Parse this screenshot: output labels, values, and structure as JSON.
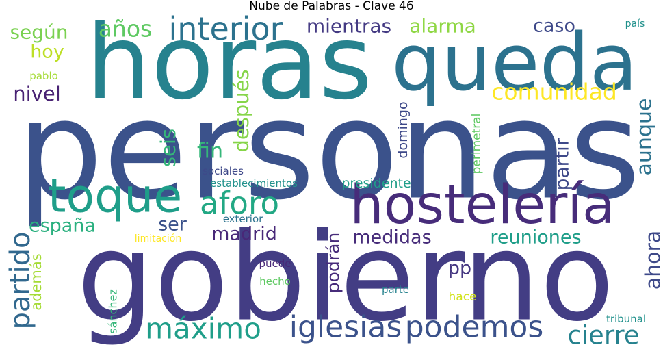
{
  "title": "Nube de Palabras - Clave 46",
  "chart_data": {
    "type": "wordcloud",
    "title": "Nube de Palabras - Clave 46",
    "words": [
      {
        "text": "personas",
        "color": "#3b528b"
      },
      {
        "text": "gobierno",
        "color": "#433d84"
      },
      {
        "text": "horas",
        "color": "#26828e"
      },
      {
        "text": "queda",
        "color": "#2c728e"
      },
      {
        "text": "hostelería",
        "color": "#472c7a"
      },
      {
        "text": "toque",
        "color": "#1f9e89"
      },
      {
        "text": "interior",
        "color": "#2c728e"
      },
      {
        "text": "aforo",
        "color": "#22a884"
      },
      {
        "text": "máximo",
        "color": "#1f9e89"
      },
      {
        "text": "iglesias",
        "color": "#3b528b"
      },
      {
        "text": "podemos",
        "color": "#3b528b"
      },
      {
        "text": "cierre",
        "color": "#26828e"
      },
      {
        "text": "comunidad",
        "color": "#fde725"
      },
      {
        "text": "medidas",
        "color": "#472c7a"
      },
      {
        "text": "madrid",
        "color": "#482878"
      },
      {
        "text": "reuniones",
        "color": "#1f9e89"
      },
      {
        "text": "españa",
        "color": "#2ab07f"
      },
      {
        "text": "partido",
        "color": "#31688e"
      },
      {
        "text": "alarma",
        "color": "#8fd744"
      },
      {
        "text": "mientras",
        "color": "#443a83"
      },
      {
        "text": "años",
        "color": "#5ec962"
      },
      {
        "text": "según",
        "color": "#7ad151"
      },
      {
        "text": "hoy",
        "color": "#bddf26"
      },
      {
        "text": "nivel",
        "color": "#482173"
      },
      {
        "text": "caso",
        "color": "#3e4989"
      },
      {
        "text": "aunque",
        "color": "#2c728e"
      },
      {
        "text": "ahora",
        "color": "#3e4989"
      },
      {
        "text": "después",
        "color": "#86d549"
      },
      {
        "text": "seis",
        "color": "#35b779"
      },
      {
        "text": "fin",
        "color": "#35b779"
      },
      {
        "text": "ser",
        "color": "#3b528b"
      },
      {
        "text": "partir",
        "color": "#3e4989"
      },
      {
        "text": "podrán",
        "color": "#472c7a"
      },
      {
        "text": "pp",
        "color": "#453781"
      },
      {
        "text": "además",
        "color": "#a5db36"
      },
      {
        "text": "domingo",
        "color": "#3e4989"
      },
      {
        "text": "perimetral",
        "color": "#5ec962"
      },
      {
        "text": "presidente",
        "color": "#1f9e89"
      },
      {
        "text": "establecimientos",
        "color": "#21918c"
      },
      {
        "text": "sociales",
        "color": "#3e4989"
      },
      {
        "text": "exterior",
        "color": "#2c728e"
      },
      {
        "text": "limitación",
        "color": "#fde725"
      },
      {
        "text": "puede",
        "color": "#482878"
      },
      {
        "text": "hecho",
        "color": "#5ec962"
      },
      {
        "text": "parte",
        "color": "#26828e"
      },
      {
        "text": "hace",
        "color": "#d2e21b"
      },
      {
        "text": "sánchez",
        "color": "#35b779"
      },
      {
        "text": "tribunal",
        "color": "#21918c"
      },
      {
        "text": "país",
        "color": "#21918c"
      },
      {
        "text": "pablo",
        "color": "#a5db36"
      }
    ]
  }
}
